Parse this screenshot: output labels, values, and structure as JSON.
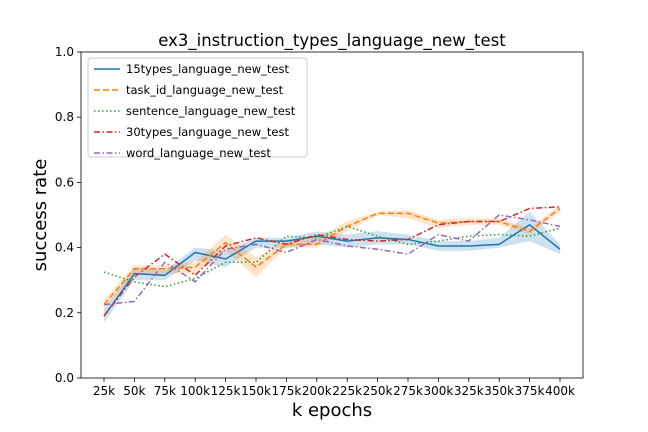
{
  "chart_data": {
    "type": "line",
    "title": "ex3_instruction_types_language_new_test",
    "xlabel": "k epochs",
    "ylabel": "success rate",
    "categories": [
      "25k",
      "50k",
      "75k",
      "100k",
      "125k",
      "150k",
      "175k",
      "200k",
      "225k",
      "250k",
      "275k",
      "300k",
      "325k",
      "350k",
      "375k",
      "400k"
    ],
    "ylim": [
      0.0,
      1.0
    ],
    "yticks": [
      "0.0",
      "0.2",
      "0.4",
      "0.6",
      "0.8",
      "1.0"
    ],
    "legend_position": "upper-left",
    "series": [
      {
        "name": "15types_language_new_test",
        "color": "#1f77b4",
        "style": "solid",
        "values": [
          0.19,
          0.32,
          0.315,
          0.385,
          0.365,
          0.42,
          0.42,
          0.435,
          0.42,
          0.43,
          0.425,
          0.405,
          0.405,
          0.41,
          0.47,
          0.395
        ],
        "band_low": [
          0.17,
          0.3,
          0.3,
          0.36,
          0.34,
          0.4,
          0.4,
          0.41,
          0.4,
          0.41,
          0.41,
          0.39,
          0.39,
          0.4,
          0.42,
          0.38
        ],
        "band_high": [
          0.21,
          0.34,
          0.33,
          0.4,
          0.39,
          0.43,
          0.43,
          0.45,
          0.44,
          0.45,
          0.44,
          0.42,
          0.42,
          0.43,
          0.51,
          0.41
        ]
      },
      {
        "name": "task_id_language_new_test",
        "color": "#ff7f0e",
        "style": "dashed",
        "values": [
          0.225,
          0.335,
          0.335,
          0.34,
          0.415,
          0.34,
          0.41,
          0.41,
          0.465,
          0.505,
          0.505,
          0.475,
          0.48,
          0.48,
          0.45,
          0.52
        ],
        "band_low": [
          0.21,
          0.32,
          0.32,
          0.32,
          0.39,
          0.31,
          0.4,
          0.4,
          0.45,
          0.5,
          0.49,
          0.46,
          0.47,
          0.47,
          0.44,
          0.51
        ],
        "band_high": [
          0.24,
          0.345,
          0.345,
          0.355,
          0.44,
          0.37,
          0.425,
          0.43,
          0.48,
          0.51,
          0.515,
          0.485,
          0.49,
          0.49,
          0.46,
          0.53
        ]
      },
      {
        "name": "sentence_language_new_test",
        "color": "#2ca02c",
        "style": "dotted",
        "values": [
          0.325,
          0.295,
          0.28,
          0.305,
          0.355,
          0.355,
          0.435,
          0.43,
          0.465,
          0.435,
          0.41,
          0.42,
          0.435,
          0.44,
          0.435,
          0.46
        ],
        "band_low": null,
        "band_high": null
      },
      {
        "name": "30types_language_new_test",
        "color": "#d62728",
        "style": "dashdot",
        "values": [
          0.19,
          0.31,
          0.38,
          0.315,
          0.405,
          0.43,
          0.41,
          0.44,
          0.425,
          0.42,
          0.425,
          0.47,
          0.48,
          0.48,
          0.52,
          0.525
        ],
        "band_low": null,
        "band_high": null
      },
      {
        "name": "word_language_new_test",
        "color": "#9467bd",
        "style": "dashdot",
        "values": [
          0.225,
          0.235,
          0.355,
          0.295,
          0.395,
          0.41,
          0.385,
          0.425,
          0.405,
          0.395,
          0.38,
          0.44,
          0.42,
          0.5,
          0.485,
          0.465
        ],
        "band_low": null,
        "band_high": null
      }
    ]
  }
}
